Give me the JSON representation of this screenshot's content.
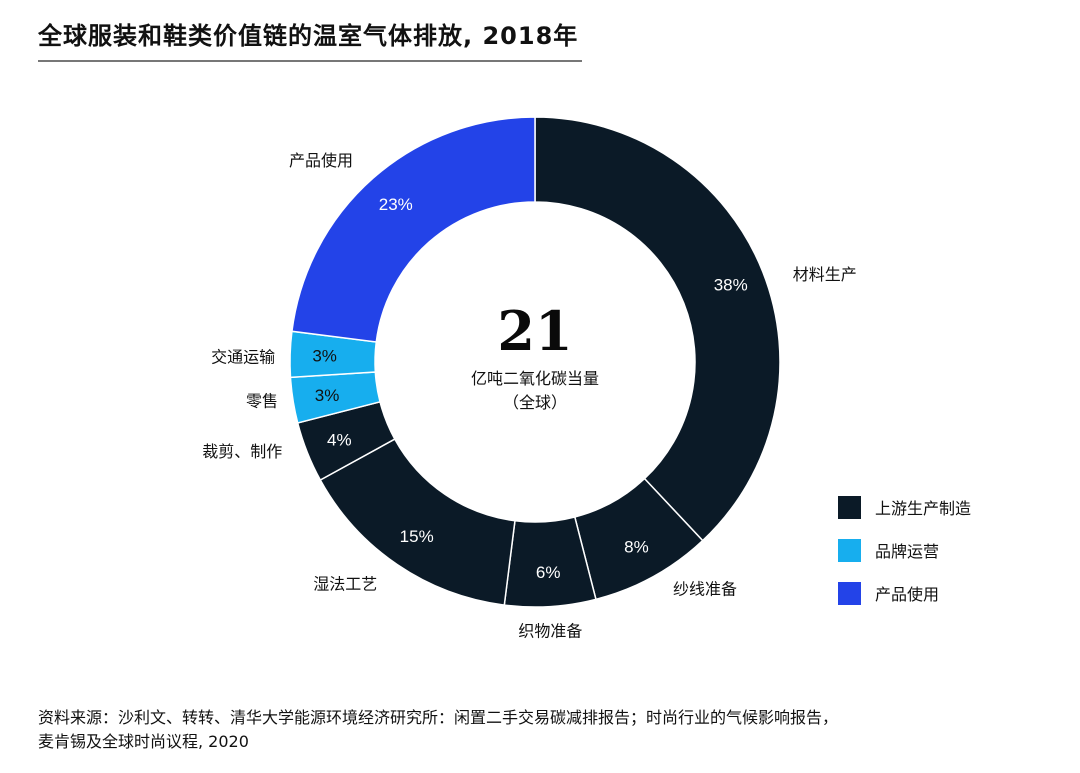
{
  "header": {
    "title": "全球服装和鞋类价值链的温室气体排放, 2018年"
  },
  "colors": {
    "upstream": "#0b1a27",
    "brand": "#17aeee",
    "use": "#2343e8"
  },
  "chart_data": {
    "type": "pie",
    "subtype": "donut",
    "title": "全球服装和鞋类价值链的温室气体排放, 2018年",
    "center": {
      "value": "21",
      "unit": "亿吨二氧化碳当量",
      "scope": "（全球）"
    },
    "slices": [
      {
        "name": "材料生产",
        "value": 38,
        "label": "38%",
        "group": "上游生产制造"
      },
      {
        "name": "纱线准备",
        "value": 8,
        "label": "8%",
        "group": "上游生产制造"
      },
      {
        "name": "织物准备",
        "value": 6,
        "label": "6%",
        "group": "上游生产制造"
      },
      {
        "name": "湿法工艺",
        "value": 15,
        "label": "15%",
        "group": "上游生产制造"
      },
      {
        "name": "裁剪、制作",
        "value": 4,
        "label": "4%",
        "group": "上游生产制造"
      },
      {
        "name": "零售",
        "value": 3,
        "label": "3%",
        "group": "品牌运营"
      },
      {
        "name": "交通运输",
        "value": 3,
        "label": "3%",
        "group": "品牌运营"
      },
      {
        "name": "产品使用",
        "value": 23,
        "label": "23%",
        "group": "产品使用"
      }
    ],
    "legend": {
      "position": "bottom-right",
      "items": [
        {
          "name": "上游生产制造",
          "color": "#0b1a27"
        },
        {
          "name": "品牌运营",
          "color": "#17aeee"
        },
        {
          "name": "产品使用",
          "color": "#2343e8"
        }
      ]
    }
  },
  "footer": {
    "source_line1": "资料来源：沙利文、转转、清华大学能源环境经济研究所：闲置二手交易碳减排报告；时尚行业的气候影响报告，",
    "source_line2": "麦肯锡及全球时尚议程, 2020"
  }
}
